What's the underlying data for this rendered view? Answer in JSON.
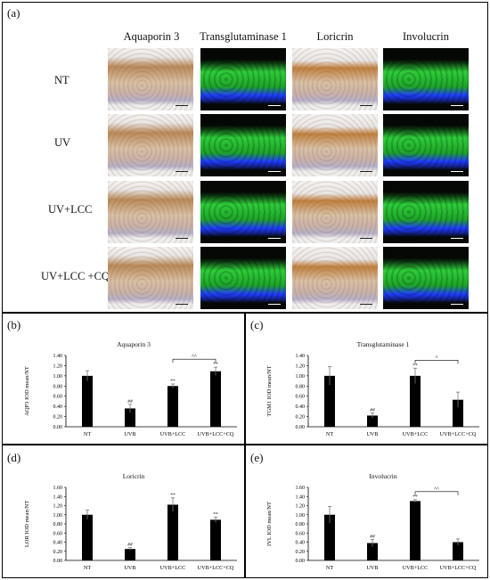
{
  "figure": {
    "panel_a_label": "(a)",
    "columns": [
      "Aquaporin 3",
      "Transglutaminase 1",
      "Loricrin",
      "Involucrin"
    ],
    "rows": [
      "NT",
      "UV",
      "UV+LCC",
      "UV+LCC +CQ"
    ],
    "stain_colors": {
      "ihc_brown": "#b98a5a",
      "fluor_green": "#2ecc3a",
      "fluor_blue": "#1f3cff",
      "fluor_bg": "#050805"
    }
  },
  "panel_labels": [
    "(b)",
    "(c)",
    "(d)",
    "(e)"
  ],
  "chart_data": [
    {
      "type": "bar",
      "panel": "(b)",
      "title": "Aquaporin 3",
      "ylabel": "AQP3 IOD mean/NT",
      "categories": [
        "NT",
        "UVB",
        "UVB+LCC",
        "UVB+LCC+CQ"
      ],
      "values": [
        1.0,
        0.36,
        0.8,
        1.09
      ],
      "errors": [
        0.1,
        0.08,
        0.04,
        0.08
      ],
      "ylim": [
        0,
        1.4
      ],
      "yticks": [
        "0.00",
        "0.20",
        "0.40",
        "0.60",
        "0.80",
        "1.00",
        "1.20",
        "1.40"
      ],
      "marks": [
        "",
        "##",
        "**",
        "**"
      ],
      "bracket": {
        "from": 2,
        "to": 3,
        "label": "^^"
      }
    },
    {
      "type": "bar",
      "panel": "(c)",
      "title": "Transglutaminase 1",
      "ylabel": "TGM1 IOD mean/NT",
      "categories": [
        "NT",
        "UVB",
        "UVB+LCC",
        "UVB+LCC+CQ"
      ],
      "values": [
        1.0,
        0.22,
        1.0,
        0.53
      ],
      "errors": [
        0.18,
        0.05,
        0.15,
        0.15
      ],
      "ylim": [
        0,
        1.4
      ],
      "yticks": [
        "0.00",
        "0.20",
        "0.40",
        "0.60",
        "0.80",
        "1.00",
        "1.20",
        "1.40"
      ],
      "marks": [
        "",
        "##",
        "**",
        ""
      ],
      "bracket": {
        "from": 2,
        "to": 3,
        "label": "^"
      }
    },
    {
      "type": "bar",
      "panel": "(d)",
      "title": "Loricrin",
      "ylabel": "LOR IOD mean/NT",
      "categories": [
        "NT",
        "UVB",
        "UVB+LCC",
        "UVB+LCC+CQ"
      ],
      "values": [
        1.0,
        0.25,
        1.22,
        0.89
      ],
      "errors": [
        0.1,
        0.03,
        0.15,
        0.06
      ],
      "ylim": [
        0,
        1.6
      ],
      "yticks": [
        "0.00",
        "0.20",
        "0.40",
        "0.60",
        "0.80",
        "1.00",
        "1.20",
        "1.40",
        "1.60"
      ],
      "marks": [
        "",
        "##",
        "**",
        "**"
      ],
      "bracket": null
    },
    {
      "type": "bar",
      "panel": "(e)",
      "title": "Involucrin",
      "ylabel": "IVL IOD mean/NT",
      "categories": [
        "NT",
        "UVB",
        "UVB+LCC",
        "UVB+LCC+CQ"
      ],
      "values": [
        1.0,
        0.38,
        1.3,
        0.4
      ],
      "errors": [
        0.18,
        0.08,
        0.03,
        0.07
      ],
      "ylim": [
        0,
        1.6
      ],
      "yticks": [
        "0.00",
        "0.20",
        "0.40",
        "0.60",
        "0.80",
        "1.00",
        "1.20",
        "1.40",
        "1.60"
      ],
      "marks": [
        "",
        "##",
        "**",
        ""
      ],
      "bracket": {
        "from": 2,
        "to": 3,
        "label": "^^"
      }
    }
  ]
}
